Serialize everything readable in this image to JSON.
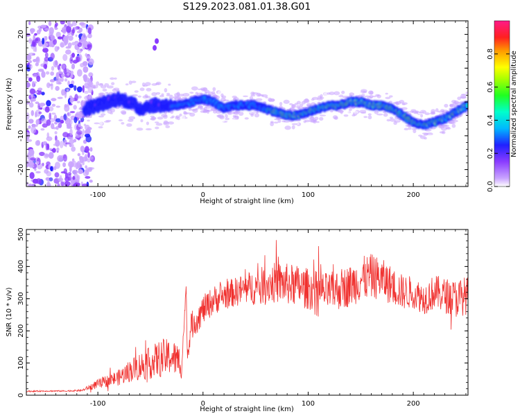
{
  "title": "S129.2023.081.01.38.G01",
  "colors": {
    "snr_line": "#f0302e",
    "spectrogram_low": "#b388ff",
    "spectrogram_mid": "#1a1aff",
    "spectrogram_high": "#ff2020"
  },
  "chart_data": [
    {
      "type": "heatmap",
      "xlabel": "Height of straight line (km)",
      "ylabel": "Frequency (Hz)",
      "xlim": [
        -168,
        252
      ],
      "ylim": [
        -25,
        24
      ],
      "xticks": [
        -100,
        0,
        100,
        200
      ],
      "xtick_labels": [
        "-100",
        "0",
        "100",
        "200"
      ],
      "yticks": [
        -20,
        -10,
        0,
        10,
        20
      ],
      "ytick_labels": [
        "-20",
        "-10",
        "0",
        "10",
        "20"
      ],
      "colorbar": {
        "label": "Normalized spectral amplitude",
        "range": [
          0,
          1
        ],
        "ticks": [
          0.0,
          0.2,
          0.4,
          0.6,
          0.8
        ],
        "tick_labels": [
          "0.0",
          "0.2",
          "0.4",
          "0.6",
          "0.8"
        ],
        "palette": "rainbow (white/violet to red/magenta)"
      },
      "ridge_trace": {
        "x": [
          -113,
          -100,
          -90,
          -80,
          -70,
          -60,
          -50,
          -40,
          -30,
          -20,
          -10,
          0,
          10,
          20,
          30,
          40,
          50,
          60,
          70,
          80,
          90,
          100,
          110,
          120,
          130,
          140,
          150,
          160,
          170,
          180,
          190,
          200,
          210,
          220,
          230,
          240,
          252
        ],
        "y": [
          -2,
          -1,
          0,
          1,
          0,
          -2,
          -1,
          -1,
          -1,
          -1,
          0,
          1,
          0,
          -2,
          -1,
          -1,
          -1,
          -2,
          -3,
          -4,
          -4,
          -3,
          -2,
          -1,
          -1,
          0,
          0,
          -1,
          -1,
          -2,
          -4,
          -6,
          -7,
          -6,
          -5,
          -3,
          -1
        ]
      },
      "bright_spots": [
        {
          "x": -46,
          "y": 16
        },
        {
          "x": -44,
          "y": 18
        }
      ],
      "noisy_region_x": [
        -168,
        -113
      ]
    },
    {
      "type": "line",
      "xlabel": "Height of straight line (km)",
      "ylabel": "SNR (10 * v/v)",
      "xlim": [
        -168,
        252
      ],
      "ylim": [
        0,
        515
      ],
      "xticks": [
        -100,
        0,
        100,
        200
      ],
      "xtick_labels": [
        "-100",
        "0",
        "100",
        "200"
      ],
      "yticks": [
        0,
        100,
        200,
        300,
        400,
        500
      ],
      "ytick_labels": [
        "0",
        "100",
        "200",
        "300",
        "400",
        "500"
      ],
      "series": [
        {
          "x": [
            -168,
            -150,
            -130,
            -115,
            -100,
            -90,
            -80,
            -70,
            -60,
            -50,
            -40,
            -30,
            -25,
            -20,
            -16,
            -15,
            -12,
            -10,
            -5,
            0,
            10,
            20,
            30,
            40,
            50,
            60,
            70,
            80,
            90,
            100,
            110,
            120,
            130,
            140,
            150,
            160,
            170,
            180,
            190,
            200,
            210,
            220,
            230,
            240,
            250
          ],
          "y": [
            12,
            13,
            13,
            15,
            35,
            45,
            55,
            75,
            90,
            100,
            115,
            120,
            110,
            100,
            345,
            120,
            200,
            220,
            240,
            265,
            295,
            310,
            320,
            330,
            335,
            345,
            350,
            345,
            340,
            330,
            325,
            320,
            330,
            340,
            360,
            370,
            360,
            340,
            320,
            320,
            300,
            320,
            310,
            300,
            310
          ],
          "noise_amplitude": [
            2,
            2,
            2,
            3,
            15,
            20,
            25,
            35,
            45,
            50,
            60,
            55,
            55,
            50,
            0,
            25,
            40,
            45,
            45,
            45,
            45,
            45,
            45,
            50,
            55,
            60,
            65,
            65,
            65,
            65,
            60,
            60,
            65,
            65,
            70,
            70,
            65,
            60,
            55,
            50,
            50,
            55,
            55,
            60,
            60
          ]
        }
      ]
    }
  ]
}
